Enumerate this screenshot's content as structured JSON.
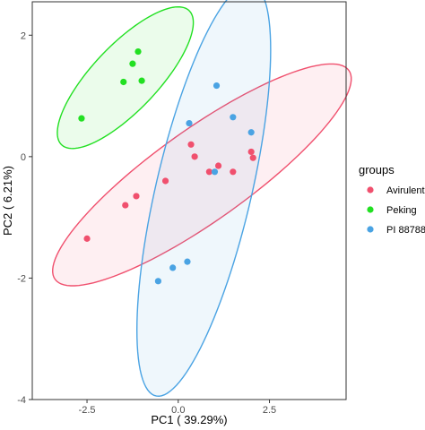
{
  "chart_data": {
    "type": "scatter",
    "xlabel": "PC1 ( 39.29%)",
    "ylabel": "PC2 ( 6.21%)",
    "xlim": [
      -4.0,
      4.6
    ],
    "ylim": [
      -4.0,
      2.55
    ],
    "x_ticks": [
      -2.5,
      0.0,
      2.5
    ],
    "x_tick_labels": [
      "-2.5",
      "0.0",
      "2.5"
    ],
    "y_ticks": [
      -4,
      -2,
      0,
      2
    ],
    "y_tick_labels": [
      "-4",
      "-2",
      "0",
      "2"
    ],
    "grid": false,
    "legend": {
      "title": "groups",
      "placement": "right"
    },
    "series": [
      {
        "name": "Avirulent",
        "color": "#f0506e",
        "points": [
          [
            -2.5,
            -1.35
          ],
          [
            -1.45,
            -0.8
          ],
          [
            -1.15,
            -0.65
          ],
          [
            -0.35,
            -0.4
          ],
          [
            0.35,
            0.2
          ],
          [
            0.45,
            0.0
          ],
          [
            0.85,
            -0.25
          ],
          [
            1.1,
            -0.15
          ],
          [
            1.5,
            -0.25
          ],
          [
            2.0,
            0.08
          ],
          [
            2.05,
            -0.02
          ]
        ],
        "ellipse": {
          "center": [
            0.65,
            -0.3
          ],
          "semi_axes": [
            4.4,
            0.85
          ],
          "angle_deg": 22
        }
      },
      {
        "name": "Peking",
        "color": "#22e022",
        "points": [
          [
            -2.65,
            0.63
          ],
          [
            -1.5,
            1.23
          ],
          [
            -1.25,
            1.53
          ],
          [
            -1.1,
            1.73
          ],
          [
            -1.0,
            1.25
          ]
        ],
        "ellipse": {
          "center": [
            -1.45,
            1.3
          ],
          "semi_axes": [
            2.1,
            0.65
          ],
          "angle_deg": 29
        }
      },
      {
        "name": "PI 88788",
        "color": "#4aa3e3",
        "points": [
          [
            -0.55,
            -2.05
          ],
          [
            -0.15,
            -1.83
          ],
          [
            0.25,
            -1.73
          ],
          [
            0.3,
            0.55
          ],
          [
            1.0,
            -0.25
          ],
          [
            1.05,
            1.17
          ],
          [
            1.5,
            0.65
          ],
          [
            2.0,
            0.4
          ]
        ],
        "ellipse": {
          "center": [
            0.7,
            -0.55
          ],
          "semi_axes": [
            3.65,
            1.25
          ],
          "angle_deg": 67
        }
      }
    ]
  }
}
